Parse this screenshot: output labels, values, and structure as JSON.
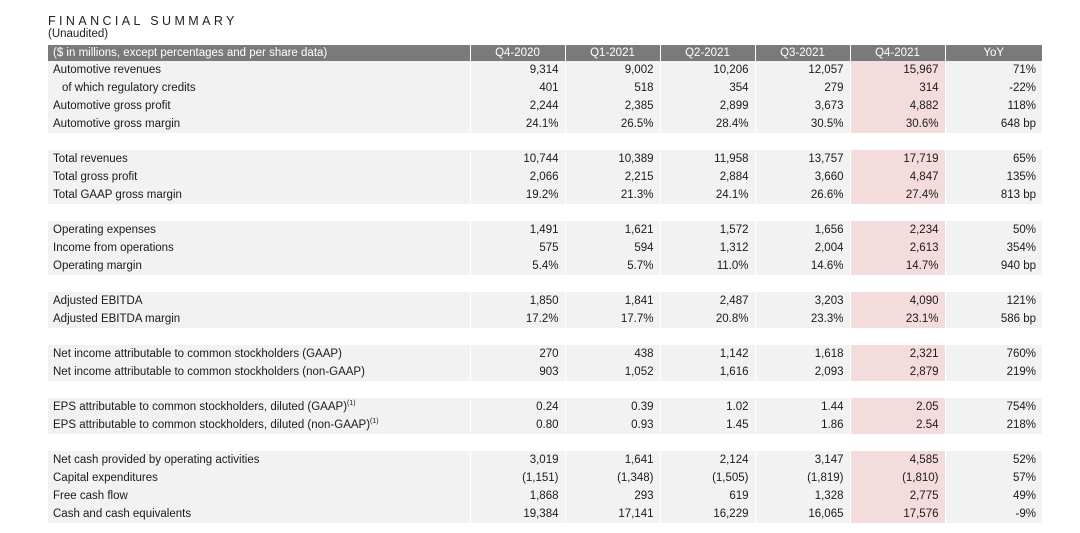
{
  "header": {
    "title": "FINANCIAL SUMMARY",
    "subtitle": "(Unaudited)"
  },
  "table": {
    "columns": [
      "($ in millions, except percentages and per share data)",
      "Q4-2020",
      "Q1-2021",
      "Q2-2021",
      "Q3-2021",
      "Q4-2021",
      "YoY"
    ],
    "highlight_color": "#f5dcdc",
    "groups": [
      {
        "rows": [
          {
            "label": "Automotive revenues",
            "values": [
              "9,314",
              "9,002",
              "10,206",
              "12,057",
              "15,967",
              "71%"
            ]
          },
          {
            "label": "of which regulatory credits",
            "indent": true,
            "values": [
              "401",
              "518",
              "354",
              "279",
              "314",
              "-22%"
            ]
          },
          {
            "label": "Automotive gross profit",
            "values": [
              "2,244",
              "2,385",
              "2,899",
              "3,673",
              "4,882",
              "118%"
            ]
          },
          {
            "label": "Automotive gross margin",
            "values": [
              "24.1%",
              "26.5%",
              "28.4%",
              "30.5%",
              "30.6%",
              "648 bp"
            ]
          }
        ]
      },
      {
        "rows": [
          {
            "label": "Total revenues",
            "values": [
              "10,744",
              "10,389",
              "11,958",
              "13,757",
              "17,719",
              "65%"
            ]
          },
          {
            "label": "Total gross profit",
            "values": [
              "2,066",
              "2,215",
              "2,884",
              "3,660",
              "4,847",
              "135%"
            ]
          },
          {
            "label": "Total GAAP gross margin",
            "values": [
              "19.2%",
              "21.3%",
              "24.1%",
              "26.6%",
              "27.4%",
              "813 bp"
            ]
          }
        ]
      },
      {
        "rows": [
          {
            "label": "Operating expenses",
            "values": [
              "1,491",
              "1,621",
              "1,572",
              "1,656",
              "2,234",
              "50%"
            ]
          },
          {
            "label": "Income from operations",
            "values": [
              "575",
              "594",
              "1,312",
              "2,004",
              "2,613",
              "354%"
            ]
          },
          {
            "label": "Operating margin",
            "values": [
              "5.4%",
              "5.7%",
              "11.0%",
              "14.6%",
              "14.7%",
              "940 bp"
            ]
          }
        ]
      },
      {
        "rows": [
          {
            "label": "Adjusted EBITDA",
            "values": [
              "1,850",
              "1,841",
              "2,487",
              "3,203",
              "4,090",
              "121%"
            ]
          },
          {
            "label": "Adjusted EBITDA margin",
            "values": [
              "17.2%",
              "17.7%",
              "20.8%",
              "23.3%",
              "23.1%",
              "586 bp"
            ]
          }
        ]
      },
      {
        "rows": [
          {
            "label": "Net income attributable to common stockholders (GAAP)",
            "values": [
              "270",
              "438",
              "1,142",
              "1,618",
              "2,321",
              "760%"
            ]
          },
          {
            "label": "Net income attributable to common stockholders (non-GAAP)",
            "values": [
              "903",
              "1,052",
              "1,616",
              "2,093",
              "2,879",
              "219%"
            ]
          }
        ]
      },
      {
        "rows": [
          {
            "label": "EPS attributable to common stockholders, diluted (GAAP)",
            "footnote": "(1)",
            "values": [
              "0.24",
              "0.39",
              "1.02",
              "1.44",
              "2.05",
              "754%"
            ]
          },
          {
            "label": "EPS attributable to common stockholders, diluted (non-GAAP)",
            "footnote": "(1)",
            "values": [
              "0.80",
              "0.93",
              "1.45",
              "1.86",
              "2.54",
              "218%"
            ]
          }
        ]
      },
      {
        "rows": [
          {
            "label": "Net cash provided by operating activities",
            "values": [
              "3,019",
              "1,641",
              "2,124",
              "3,147",
              "4,585",
              "52%"
            ]
          },
          {
            "label": "Capital expenditures",
            "values": [
              "(1,151)",
              "(1,348)",
              "(1,505)",
              "(1,819)",
              "(1,810)",
              "57%"
            ]
          },
          {
            "label": "Free cash flow",
            "values": [
              "1,868",
              "293",
              "619",
              "1,328",
              "2,775",
              "49%"
            ]
          },
          {
            "label": "Cash and cash equivalents",
            "values": [
              "19,384",
              "17,141",
              "16,229",
              "16,065",
              "17,576",
              "-9%"
            ]
          }
        ]
      }
    ]
  }
}
